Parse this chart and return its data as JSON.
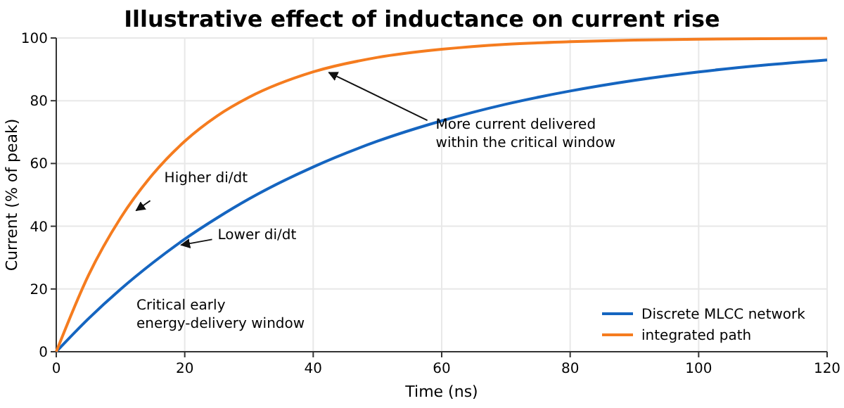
{
  "chart_data": {
    "type": "line",
    "title": "Illustrative effect of inductance on current rise",
    "xlabel": "Time (ns)",
    "ylabel": "Current (% of peak)",
    "x": [
      0,
      5,
      10,
      15,
      20,
      25,
      30,
      40,
      50,
      60,
      70,
      80,
      90,
      100,
      110,
      120
    ],
    "series": [
      {
        "name": "Discrete MLCC network",
        "color": "#1565c0",
        "values": [
          0,
          10.5,
          19.9,
          28.3,
          35.9,
          42.6,
          48.7,
          58.9,
          67.1,
          73.6,
          78.9,
          83.1,
          86.5,
          89.2,
          91.3,
          93.0
        ]
      },
      {
        "name": "integrated path",
        "color": "#f57c1f",
        "values": [
          0,
          24.3,
          42.6,
          56.5,
          67.1,
          75.1,
          81.1,
          89.2,
          93.8,
          96.4,
          98.0,
          98.8,
          99.3,
          99.6,
          99.8,
          99.9
        ]
      }
    ],
    "xlim": [
      0,
      120
    ],
    "xticks": [
      0,
      20,
      40,
      60,
      80,
      100,
      120
    ],
    "ylim": [
      0,
      100
    ],
    "yticks": [
      0,
      20,
      40,
      60,
      80,
      100
    ],
    "grid": true,
    "legend": "bottom right",
    "marker": "none",
    "line_style": "solid",
    "annotations": [
      {
        "text": "Higher di/dt",
        "x": 12,
        "y": 45
      },
      {
        "text": "Lower di/dt",
        "x": 19,
        "y": 34
      },
      {
        "text": "More current delivered\nwithin the critical window",
        "x": 42,
        "y": 89
      },
      "Critical early\nenergy-delivery window"
    ]
  }
}
